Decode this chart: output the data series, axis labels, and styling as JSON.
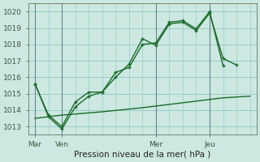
{
  "title": "Pression niveau de la mer( hPa )",
  "bg_color": "#cce8e0",
  "grid_color": "#99cccc",
  "line_color": "#1a6b2a",
  "vline_color": "#556677",
  "ylim": [
    1012.5,
    1020.5
  ],
  "yticks": [
    1013,
    1014,
    1015,
    1016,
    1017,
    1018,
    1019,
    1020
  ],
  "x_tick_labels": [
    "Mar",
    "Ven",
    "Mer",
    "Jeu"
  ],
  "x_tick_positions": [
    0,
    2,
    9,
    13
  ],
  "xlim": [
    -0.5,
    16.5
  ],
  "line1_x": [
    0,
    1,
    2,
    3,
    4,
    5,
    6,
    7,
    8,
    9,
    10,
    11,
    12,
    13,
    14
  ],
  "line1_y": [
    1015.6,
    1013.7,
    1013.0,
    1014.5,
    1015.1,
    1015.1,
    1016.3,
    1016.6,
    1018.0,
    1018.1,
    1019.35,
    1019.45,
    1018.95,
    1020.0,
    1016.7
  ],
  "line2_x": [
    0,
    1,
    2,
    3,
    4,
    5,
    6,
    7,
    8,
    9,
    10,
    11,
    12,
    13,
    14,
    15
  ],
  "line2_y": [
    1015.6,
    1013.6,
    1012.85,
    1014.2,
    1014.85,
    1015.1,
    1016.0,
    1016.8,
    1018.35,
    1017.95,
    1019.25,
    1019.35,
    1018.85,
    1019.9,
    1017.15,
    1016.75
  ],
  "line3_x": [
    0,
    2,
    5,
    8,
    11,
    14,
    16
  ],
  "line3_y": [
    1013.5,
    1013.7,
    1013.9,
    1014.15,
    1014.45,
    1014.75,
    1014.85
  ]
}
